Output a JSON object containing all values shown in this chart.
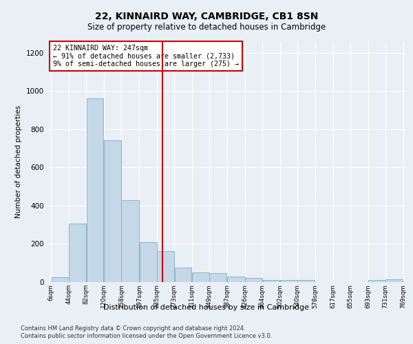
{
  "title": "22, KINNAIRD WAY, CAMBRIDGE, CB1 8SN",
  "subtitle": "Size of property relative to detached houses in Cambridge",
  "xlabel": "Distribution of detached houses by size in Cambridge",
  "ylabel": "Number of detached properties",
  "bar_color": "#C5D8E8",
  "bar_edge_color": "#88B4CC",
  "vline_x": 247,
  "vline_color": "#CC0000",
  "annotation_lines": [
    "22 KINNAIRD WAY: 247sqm",
    "← 91% of detached houses are smaller (2,733)",
    "9% of semi-detached houses are larger (275) →"
  ],
  "annotation_box_color": "#CC0000",
  "bin_edges": [
    6,
    44,
    82,
    120,
    158,
    197,
    235,
    273,
    311,
    349,
    387,
    426,
    464,
    502,
    540,
    578,
    617,
    655,
    693,
    731,
    769
  ],
  "bin_heights": [
    25,
    305,
    960,
    740,
    430,
    210,
    163,
    75,
    50,
    48,
    30,
    20,
    10,
    10,
    10,
    0,
    0,
    0,
    10,
    15
  ],
  "ylim": [
    0,
    1260
  ],
  "yticks": [
    0,
    200,
    400,
    600,
    800,
    1000,
    1200
  ],
  "footnote1": "Contains HM Land Registry data © Crown copyright and database right 2024.",
  "footnote2": "Contains public sector information licensed under the Open Government Licence v3.0.",
  "background_color": "#E8EFF5",
  "plot_bg_color": "#E8EFF5"
}
